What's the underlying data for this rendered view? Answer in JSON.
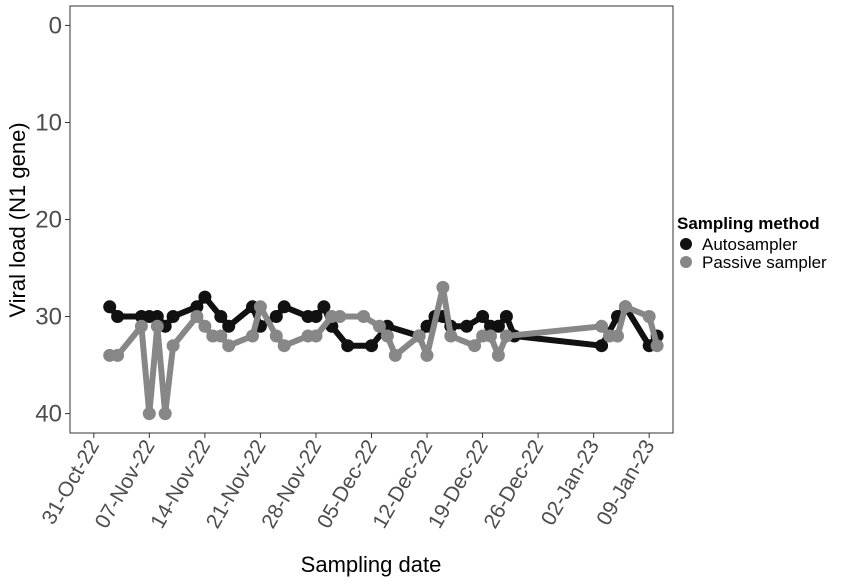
{
  "chart_data": {
    "type": "line",
    "xlabel": "Sampling date",
    "ylabel": "Viral load (N1 gene)",
    "y_reversed": true,
    "ylim": [
      42,
      -2
    ],
    "yticks": [
      0,
      10,
      20,
      30,
      40
    ],
    "xlim": [
      "2022-10-28",
      "2023-01-12"
    ],
    "xticks": [
      {
        "date": "2022-10-31",
        "label": "31-Oct-22"
      },
      {
        "date": "2022-11-07",
        "label": "07-Nov-22"
      },
      {
        "date": "2022-11-14",
        "label": "14-Nov-22"
      },
      {
        "date": "2022-11-21",
        "label": "21-Nov-22"
      },
      {
        "date": "2022-11-28",
        "label": "28-Nov-22"
      },
      {
        "date": "2022-12-05",
        "label": "05-Dec-22"
      },
      {
        "date": "2022-12-12",
        "label": "12-Dec-22"
      },
      {
        "date": "2022-12-19",
        "label": "19-Dec-22"
      },
      {
        "date": "2022-12-26",
        "label": "26-Dec-22"
      },
      {
        "date": "2023-01-02",
        "label": "02-Jan-23"
      },
      {
        "date": "2023-01-09",
        "label": "09-Jan-23"
      }
    ],
    "grid": false,
    "legend": {
      "title": "Sampling method",
      "position": "right"
    },
    "series": [
      {
        "name": "Autosampler",
        "color": "#111111",
        "points": [
          [
            "2022-11-02",
            29
          ],
          [
            "2022-11-03",
            30
          ],
          [
            "2022-11-06",
            30
          ],
          [
            "2022-11-07",
            30
          ],
          [
            "2022-11-08",
            30
          ],
          [
            "2022-11-09",
            31
          ],
          [
            "2022-11-10",
            30
          ],
          [
            "2022-11-13",
            29
          ],
          [
            "2022-11-14",
            28
          ],
          [
            "2022-11-16",
            30
          ],
          [
            "2022-11-17",
            31
          ],
          [
            "2022-11-20",
            29
          ],
          [
            "2022-11-21",
            31
          ],
          [
            "2022-11-23",
            30
          ],
          [
            "2022-11-24",
            29
          ],
          [
            "2022-11-27",
            30
          ],
          [
            "2022-11-28",
            30
          ],
          [
            "2022-11-29",
            29
          ],
          [
            "2022-11-30",
            31
          ],
          [
            "2022-12-02",
            33
          ],
          [
            "2022-12-05",
            33
          ],
          [
            "2022-12-07",
            31
          ],
          [
            "2022-12-11",
            32
          ],
          [
            "2022-12-12",
            31
          ],
          [
            "2022-12-13",
            30
          ],
          [
            "2022-12-14",
            30
          ],
          [
            "2022-12-15",
            31
          ],
          [
            "2022-12-17",
            31
          ],
          [
            "2022-12-19",
            30
          ],
          [
            "2022-12-20",
            31
          ],
          [
            "2022-12-21",
            31
          ],
          [
            "2022-12-22",
            30
          ],
          [
            "2022-12-23",
            32
          ],
          [
            "2023-01-03",
            33
          ],
          [
            "2023-01-05",
            30
          ],
          [
            "2023-01-06",
            29
          ],
          [
            "2023-01-09",
            33
          ],
          [
            "2023-01-10",
            32
          ]
        ]
      },
      {
        "name": "Passive sampler",
        "color": "#878787",
        "points": [
          [
            "2022-11-02",
            34
          ],
          [
            "2022-11-03",
            34
          ],
          [
            "2022-11-06",
            31
          ],
          [
            "2022-11-07",
            40
          ],
          [
            "2022-11-08",
            31
          ],
          [
            "2022-11-09",
            40
          ],
          [
            "2022-11-10",
            33
          ],
          [
            "2022-11-13",
            30
          ],
          [
            "2022-11-14",
            31
          ],
          [
            "2022-11-15",
            32
          ],
          [
            "2022-11-16",
            32
          ],
          [
            "2022-11-17",
            33
          ],
          [
            "2022-11-20",
            32
          ],
          [
            "2022-11-21",
            29
          ],
          [
            "2022-11-23",
            32
          ],
          [
            "2022-11-24",
            33
          ],
          [
            "2022-11-27",
            32
          ],
          [
            "2022-11-28",
            32
          ],
          [
            "2022-11-30",
            30
          ],
          [
            "2022-12-01",
            30
          ],
          [
            "2022-12-04",
            30
          ],
          [
            "2022-12-06",
            31
          ],
          [
            "2022-12-07",
            32
          ],
          [
            "2022-12-08",
            34
          ],
          [
            "2022-12-11",
            32
          ],
          [
            "2022-12-12",
            34
          ],
          [
            "2022-12-14",
            27
          ],
          [
            "2022-12-15",
            32
          ],
          [
            "2022-12-18",
            33
          ],
          [
            "2022-12-19",
            32
          ],
          [
            "2022-12-20",
            32
          ],
          [
            "2022-12-21",
            34
          ],
          [
            "2022-12-22",
            32
          ],
          [
            "2023-01-03",
            31
          ],
          [
            "2023-01-04",
            32
          ],
          [
            "2023-01-05",
            32
          ],
          [
            "2023-01-06",
            29
          ],
          [
            "2023-01-09",
            30
          ],
          [
            "2023-01-10",
            33
          ]
        ]
      }
    ]
  }
}
